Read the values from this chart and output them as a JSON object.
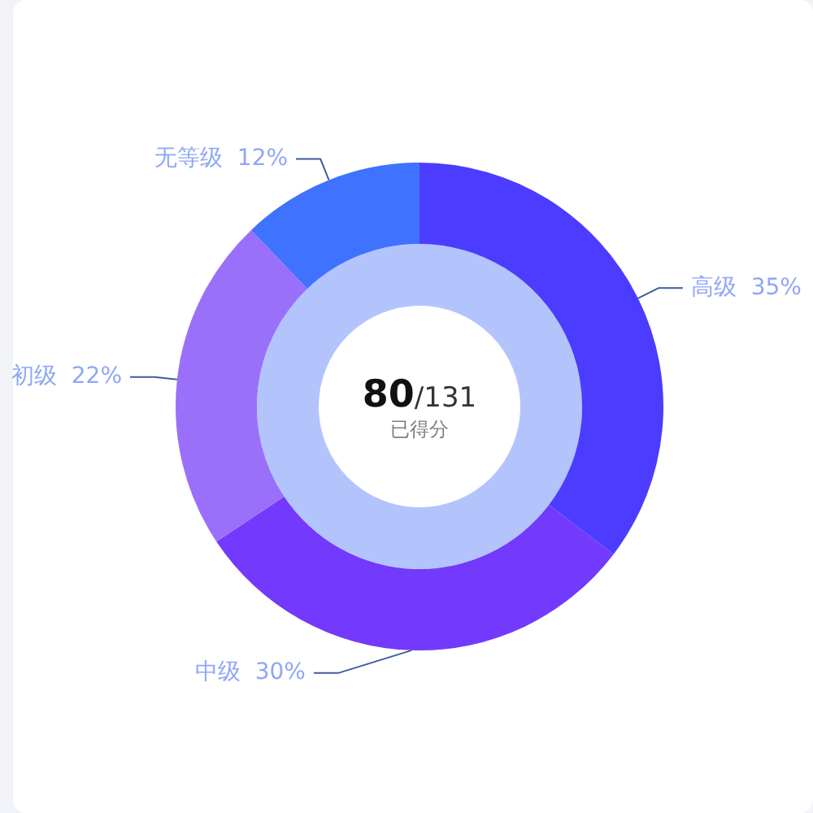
{
  "chart_data": {
    "type": "donut",
    "categories": [
      "高级",
      "中级",
      "初级",
      "无等级"
    ],
    "values": [
      35,
      30,
      22,
      12
    ],
    "value_labels": [
      "35%",
      "30%",
      "22%",
      "12%"
    ],
    "colors": [
      "#4c3cff",
      "#7339fc",
      "#9a70fa",
      "#3e72ff"
    ],
    "annotations": [
      "80",
      "/131",
      "已得分"
    ]
  }
}
